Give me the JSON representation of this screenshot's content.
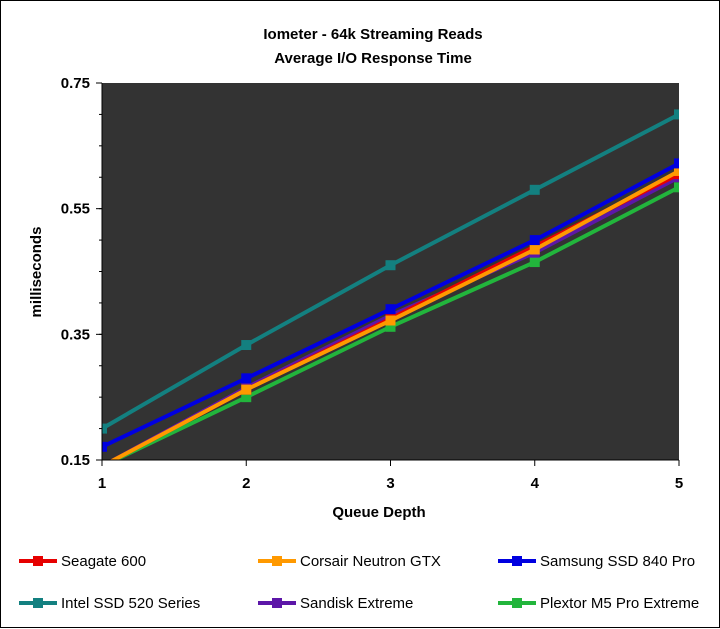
{
  "chart_data": {
    "type": "line",
    "title": "Iometer - 64k Streaming Reads",
    "subtitle": "Average I/O Response Time",
    "xlabel": "Queue Depth",
    "ylabel": "milliseconds",
    "x": [
      1,
      2,
      3,
      4,
      5
    ],
    "x_ticks": [
      "1",
      "2",
      "3",
      "4",
      "5"
    ],
    "y_ticks": [
      "0.15",
      "0.35",
      "0.55",
      "0.75"
    ],
    "y_tick_values": [
      0.15,
      0.35,
      0.55,
      0.75
    ],
    "ylim": [
      0.15,
      0.75
    ],
    "grid": false,
    "plot_background": "#333333",
    "legend_position": "bottom",
    "series": [
      {
        "name": "Seagate 600",
        "color": "#e60000",
        "values": [
          0.14,
          0.262,
          0.375,
          0.49,
          0.605
        ]
      },
      {
        "name": "Corsair Neutron GTX",
        "color": "#ff9900",
        "values": [
          0.14,
          0.262,
          0.372,
          0.485,
          0.61
        ]
      },
      {
        "name": "Samsung SSD 840 Pro",
        "color": "#0000e0",
        "values": [
          0.171,
          0.28,
          0.39,
          0.5,
          0.622
        ]
      },
      {
        "name": "Intel SSD 520 Series",
        "color": "#138080",
        "values": [
          0.2,
          0.333,
          0.46,
          0.58,
          0.7
        ]
      },
      {
        "name": "Sandisk Extreme",
        "color": "#5c16a8",
        "values": [
          0.14,
          0.265,
          0.38,
          0.48,
          0.6
        ]
      },
      {
        "name": "Plextor M5 Pro Extreme",
        "color": "#22b53c",
        "values": [
          0.14,
          0.25,
          0.362,
          0.465,
          0.584
        ]
      }
    ]
  }
}
